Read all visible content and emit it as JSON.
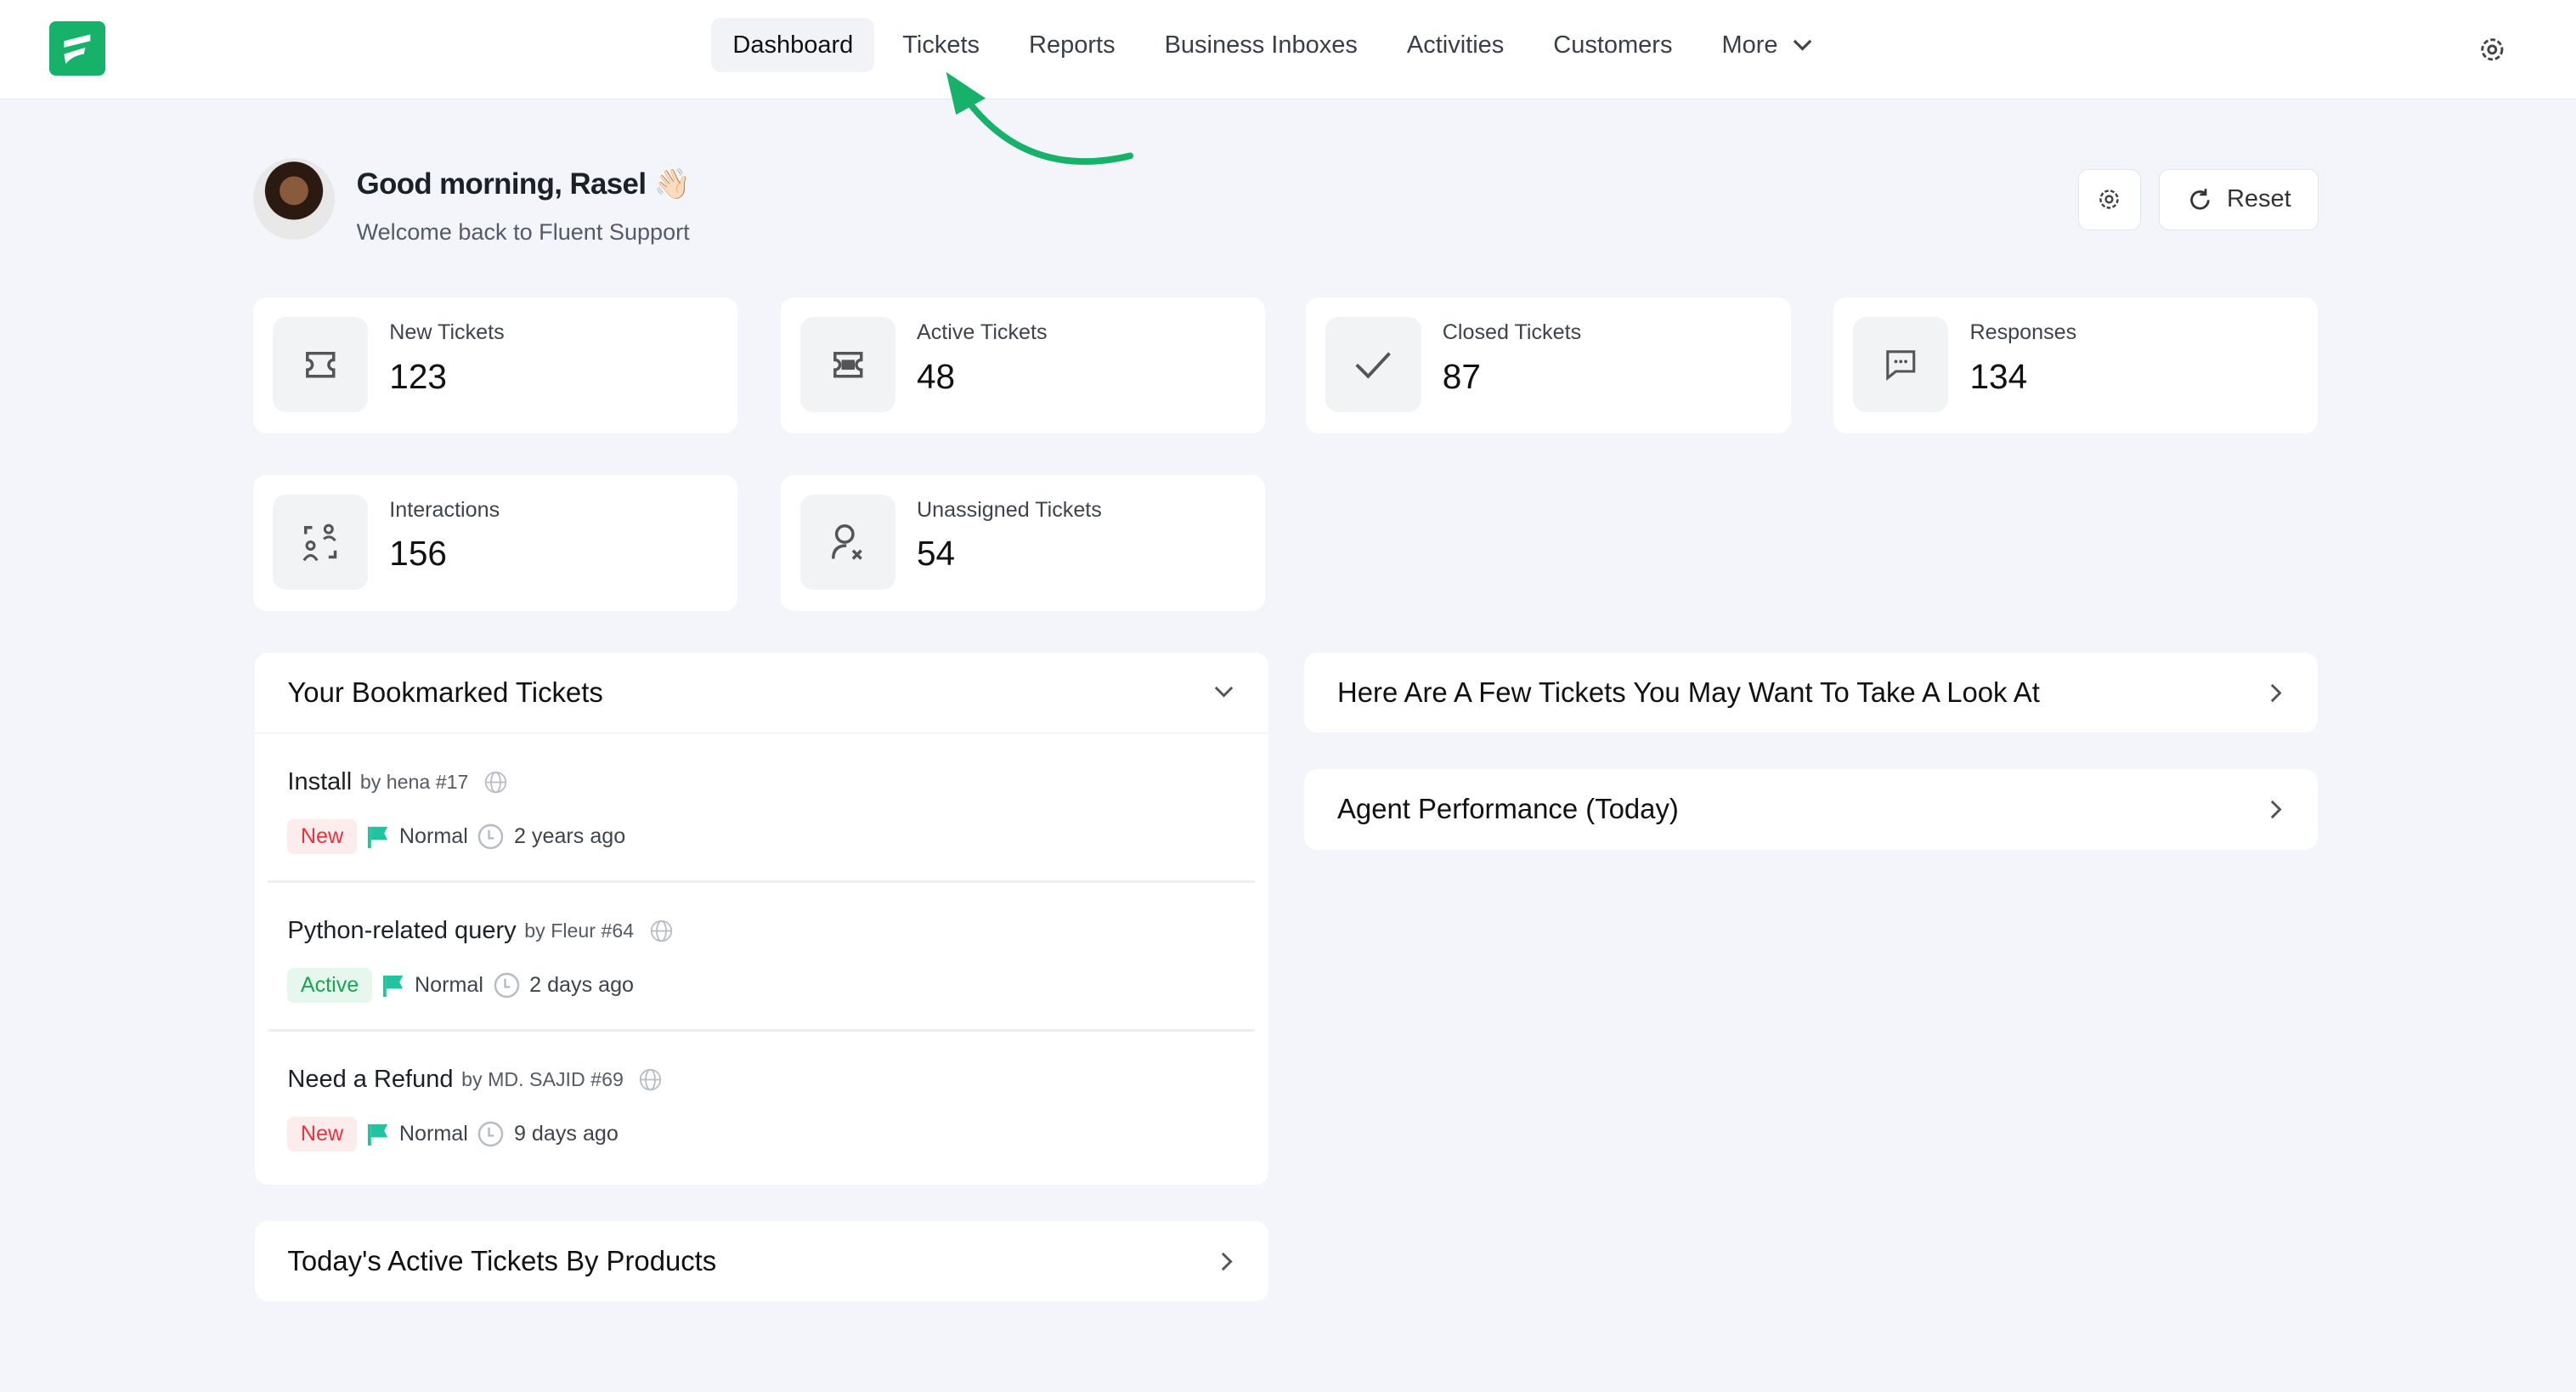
{
  "nav": {
    "items": [
      "Dashboard",
      "Tickets",
      "Reports",
      "Business Inboxes",
      "Activities",
      "Customers",
      "More"
    ],
    "active": "Dashboard"
  },
  "header": {
    "greeting": "Good morning, Rasel 👋🏻",
    "subtitle": "Welcome back to Fluent Support",
    "reset_label": "Reset"
  },
  "stats": [
    {
      "label": "New Tickets",
      "value": "123",
      "icon": "ticket-icon"
    },
    {
      "label": "Active Tickets",
      "value": "48",
      "icon": "ticket-filled-icon"
    },
    {
      "label": "Closed Tickets",
      "value": "87",
      "icon": "check-icon"
    },
    {
      "label": "Responses",
      "value": "134",
      "icon": "chat-icon"
    },
    {
      "label": "Interactions",
      "value": "156",
      "icon": "users-interaction-icon"
    },
    {
      "label": "Unassigned Tickets",
      "value": "54",
      "icon": "user-x-icon"
    }
  ],
  "bookmarked": {
    "title": "Your Bookmarked Tickets",
    "tickets": [
      {
        "title": "Install",
        "by": "by hena #17",
        "status": "New",
        "priority": "Normal",
        "time": "2 years ago"
      },
      {
        "title": "Python-related query",
        "by": "by Fleur #64",
        "status": "Active",
        "priority": "Normal",
        "time": "2 days ago"
      },
      {
        "title": "Need a Refund",
        "by": "by MD. SAJID #69",
        "status": "New",
        "priority": "Normal",
        "time": "9 days ago"
      }
    ]
  },
  "panels": {
    "look_at": "Here Are A Few Tickets You May Want To Take A Look At",
    "agent_perf": "Agent Performance (Today)",
    "by_products": "Today's Active Tickets By Products"
  },
  "colors": {
    "brand": "#17b26a",
    "flag": "#20c4a0",
    "new": "#f0303d",
    "active": "#14a651"
  }
}
